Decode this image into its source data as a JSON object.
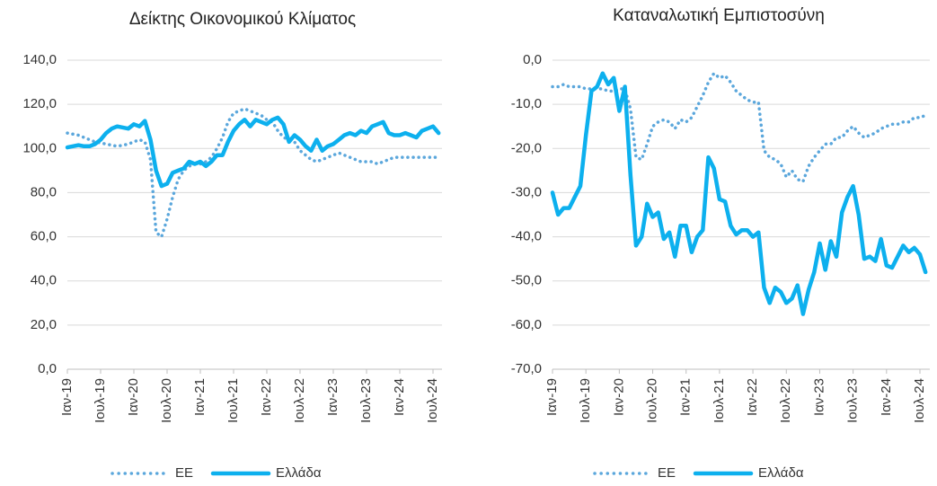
{
  "chart_data": [
    {
      "type": "line",
      "title": "Δείκτης Οικονομικού Κλίματος",
      "categories": [
        "Ιαν-19",
        null,
        null,
        null,
        null,
        null,
        "Ιουλ-19",
        null,
        null,
        null,
        null,
        null,
        "Ιαν-20",
        null,
        null,
        null,
        null,
        null,
        "Ιουλ-20",
        null,
        null,
        null,
        null,
        null,
        "Ιαν-21",
        null,
        null,
        null,
        null,
        null,
        "Ιουλ-21",
        null,
        null,
        null,
        null,
        null,
        "Ιαν-22",
        null,
        null,
        null,
        null,
        null,
        "Ιουλ-22",
        null,
        null,
        null,
        null,
        null,
        "Ιαν-23",
        null,
        null,
        null,
        null,
        null,
        "Ιουλ-23",
        null,
        null,
        null,
        null,
        null,
        "Ιαν-24",
        null,
        null,
        null,
        null,
        null,
        "Ιουλ-24",
        null
      ],
      "ylim": [
        0,
        140
      ],
      "yticks": [
        {
          "value": 0,
          "label": "0,0"
        },
        {
          "value": 20,
          "label": "20,0"
        },
        {
          "value": 40,
          "label": "40,0"
        },
        {
          "value": 60,
          "label": "60,0"
        },
        {
          "value": 80,
          "label": "80,0"
        },
        {
          "value": 100,
          "label": "100,0"
        },
        {
          "value": 120,
          "label": "120,0"
        },
        {
          "value": 140,
          "label": "140,0"
        }
      ],
      "grid": true,
      "legend": "bottom",
      "series": [
        {
          "name": "ΕΕ",
          "color": "#5ba7dc",
          "dash": "dotted",
          "values": [
            107,
            106.5,
            106,
            105,
            104,
            103,
            102.5,
            102,
            101.5,
            101,
            101.5,
            102,
            103,
            104,
            103,
            95,
            62,
            60,
            68,
            78,
            86,
            90,
            92,
            93,
            93,
            94,
            96,
            100,
            105,
            112,
            116,
            117,
            118,
            117,
            116,
            115,
            113,
            112,
            108,
            105,
            104,
            103,
            99,
            97,
            95,
            94,
            95,
            96,
            97,
            98,
            97,
            96,
            95,
            94,
            94,
            94,
            93,
            94,
            95,
            96,
            96,
            96,
            96,
            96,
            96,
            96,
            96,
            96
          ]
        },
        {
          "name": "Ελλάδα",
          "color": "#0db0ee",
          "dash": "solid",
          "values": [
            100.5,
            101,
            101.5,
            101,
            101,
            102,
            104,
            107,
            109,
            110,
            109.5,
            109,
            111,
            110,
            112.5,
            104,
            90,
            83,
            84,
            89,
            90,
            91,
            94,
            93,
            94,
            92,
            94,
            97,
            97,
            103,
            108,
            111,
            113,
            110,
            113,
            112,
            111,
            113,
            114,
            111,
            103,
            106,
            104,
            101,
            99,
            104,
            99,
            101,
            102,
            104,
            106,
            107,
            106,
            108,
            107,
            110,
            111,
            112,
            107,
            106,
            106,
            107,
            106,
            105,
            108,
            109,
            110,
            107
          ]
        }
      ]
    },
    {
      "type": "line",
      "title": "Καταναλωτική Εμπιστοσύνη",
      "categories": [
        "Ιαν-19",
        null,
        null,
        null,
        null,
        null,
        "Ιουλ-19",
        null,
        null,
        null,
        null,
        null,
        "Ιαν-20",
        null,
        null,
        null,
        null,
        null,
        "Ιουλ-20",
        null,
        null,
        null,
        null,
        null,
        "Ιαν-21",
        null,
        null,
        null,
        null,
        null,
        "Ιουλ-21",
        null,
        null,
        null,
        null,
        null,
        "Ιαν-22",
        null,
        null,
        null,
        null,
        null,
        "Ιουλ-22",
        null,
        null,
        null,
        null,
        null,
        "Ιαν-23",
        null,
        null,
        null,
        null,
        null,
        "Ιουλ-23",
        null,
        null,
        null,
        null,
        null,
        "Ιαν-24",
        null,
        null,
        null,
        null,
        null,
        "Ιουλ-24",
        null
      ],
      "ylim": [
        -70,
        0
      ],
      "yticks": [
        {
          "value": -70,
          "label": "-70,0"
        },
        {
          "value": -60,
          "label": "-60,0"
        },
        {
          "value": -50,
          "label": "-50,0"
        },
        {
          "value": -40,
          "label": "-40,0"
        },
        {
          "value": -30,
          "label": "-30,0"
        },
        {
          "value": -20,
          "label": "-20,0"
        },
        {
          "value": -10,
          "label": "-10,0"
        },
        {
          "value": 0,
          "label": "0,0"
        }
      ],
      "grid": true,
      "legend": "bottom",
      "series": [
        {
          "name": "ΕΕ",
          "color": "#5ba7dc",
          "dash": "dotted",
          "values": [
            -6,
            -6,
            -5.5,
            -6,
            -6,
            -6,
            -6.5,
            -6.5,
            -6.5,
            -6.5,
            -7,
            -7,
            -6.5,
            -6.5,
            -11,
            -22,
            -22.5,
            -19,
            -15,
            -14,
            -13.5,
            -14,
            -15.5,
            -13.5,
            -14,
            -13,
            -10.5,
            -8,
            -5,
            -3,
            -4,
            -3.5,
            -5,
            -7,
            -8,
            -9,
            -9.5,
            -9.5,
            -20.5,
            -22,
            -22.5,
            -23.5,
            -26.5,
            -25,
            -27,
            -27.5,
            -24,
            -22,
            -20.5,
            -19,
            -19,
            -17.5,
            -17.5,
            -16,
            -15,
            -16.5,
            -17.5,
            -17,
            -16.5,
            -15.5,
            -15,
            -14.5,
            -14.5,
            -14,
            -14,
            -13,
            -13,
            -12.5
          ]
        },
        {
          "name": "Ελλάδα",
          "color": "#0db0ee",
          "dash": "solid",
          "values": [
            -30,
            -35,
            -33.5,
            -33.5,
            -31,
            -28.5,
            -17,
            -7,
            -6,
            -3,
            -5.5,
            -4,
            -11.5,
            -6,
            -26,
            -42,
            -40,
            -32.5,
            -35.5,
            -34.5,
            -40.5,
            -39,
            -44.5,
            -37.5,
            -37.5,
            -43.5,
            -40,
            -38.5,
            -22,
            -24.5,
            -31.5,
            -32,
            -37.5,
            -39.5,
            -38.5,
            -38.5,
            -40,
            -39,
            -51.5,
            -55,
            -51.5,
            -52.5,
            -55,
            -54,
            -51,
            -57.5,
            -52,
            -48,
            -41.5,
            -47.5,
            -41,
            -44.5,
            -34.5,
            -31,
            -28.5,
            -35,
            -45,
            -44.5,
            -45.5,
            -40.5,
            -46.5,
            -47,
            -44.5,
            -42,
            -43.5,
            -42.5,
            -44,
            -48
          ]
        }
      ]
    }
  ]
}
